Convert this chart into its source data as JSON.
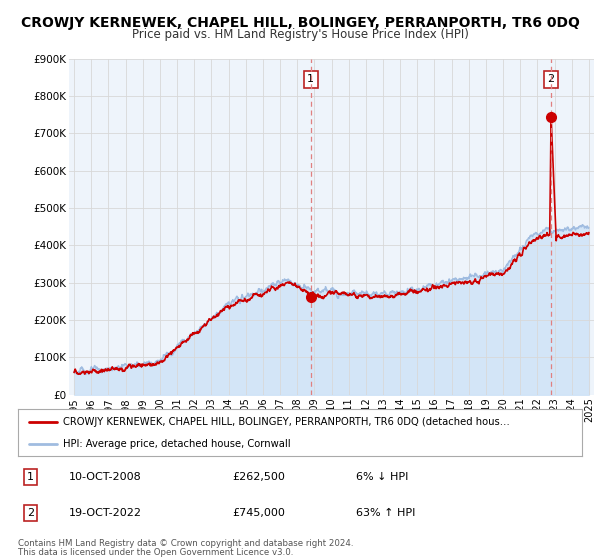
{
  "title": "CROWJY KERNEWEK, CHAPEL HILL, BOLINGEY, PERRANPORTH, TR6 0DQ",
  "subtitle": "Price paid vs. HM Land Registry's House Price Index (HPI)",
  "title_fontsize": 10,
  "subtitle_fontsize": 8.5,
  "xlim": [
    1994.7,
    2025.3
  ],
  "ylim": [
    0,
    900000
  ],
  "yticks": [
    0,
    100000,
    200000,
    300000,
    400000,
    500000,
    600000,
    700000,
    800000,
    900000
  ],
  "ytick_labels": [
    "£0",
    "£100K",
    "£200K",
    "£300K",
    "£400K",
    "£500K",
    "£600K",
    "£700K",
    "£800K",
    "£900K"
  ],
  "xticks": [
    1995,
    1996,
    1997,
    1998,
    1999,
    2000,
    2001,
    2002,
    2003,
    2004,
    2005,
    2006,
    2007,
    2008,
    2009,
    2010,
    2011,
    2012,
    2013,
    2014,
    2015,
    2016,
    2017,
    2018,
    2019,
    2020,
    2021,
    2022,
    2023,
    2024,
    2025
  ],
  "hpi_color": "#a0bce0",
  "hpi_fill_color": "#d0e4f7",
  "price_color": "#cc0000",
  "dot_color": "#cc0000",
  "vline_color": "#e08080",
  "grid_color": "#d8d8d8",
  "background_color": "#ffffff",
  "plot_bg_color": "#eef4fb",
  "sale1_x": 2008.79,
  "sale1_y": 262500,
  "sale1_label": "1",
  "sale2_x": 2022.8,
  "sale2_y": 745000,
  "sale2_label": "2",
  "vline1_x": 2008.79,
  "vline2_x": 2022.8,
  "legend_line1": "CROWJY KERNEWEK, CHAPEL HILL, BOLINGEY, PERRANPORTH, TR6 0DQ (detached hous…",
  "legend_line2": "HPI: Average price, detached house, Cornwall",
  "annot1_date": "10-OCT-2008",
  "annot1_price": "£262,500",
  "annot1_hpi": "6% ↓ HPI",
  "annot2_date": "19-OCT-2022",
  "annot2_price": "£745,000",
  "annot2_hpi": "63% ↑ HPI",
  "footer1": "Contains HM Land Registry data © Crown copyright and database right 2024.",
  "footer2": "This data is licensed under the Open Government Licence v3.0."
}
